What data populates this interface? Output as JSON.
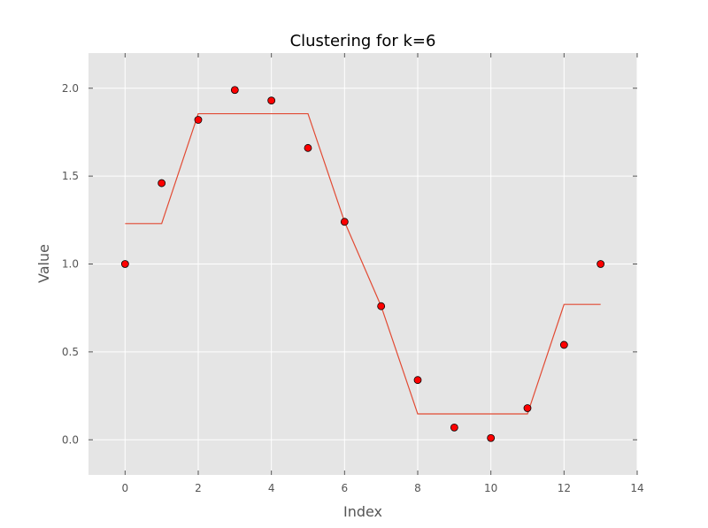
{
  "chart_data": {
    "type": "scatter",
    "title": "Clustering for k=6",
    "xlabel": "Index",
    "ylabel": "Value",
    "xlim": [
      -1,
      14
    ],
    "ylim": [
      -0.2,
      2.2
    ],
    "xticks": [
      0,
      2,
      4,
      6,
      8,
      10,
      12,
      14
    ],
    "yticks": [
      0.0,
      0.5,
      1.0,
      1.5,
      2.0
    ],
    "xtick_labels": [
      "0",
      "2",
      "4",
      "6",
      "8",
      "10",
      "12",
      "14"
    ],
    "ytick_labels": [
      "0.0",
      "0.5",
      "1.0",
      "1.5",
      "2.0"
    ],
    "grid": true,
    "series": [
      {
        "kind": "markers",
        "x": [
          0,
          1,
          2,
          3,
          4,
          5,
          6,
          7,
          8,
          9,
          10,
          11,
          12,
          13
        ],
        "y": [
          1.0,
          1.46,
          1.82,
          1.99,
          1.93,
          1.66,
          1.24,
          0.76,
          0.34,
          0.07,
          0.01,
          0.18,
          0.54,
          1.0
        ],
        "color": "#ff0000"
      },
      {
        "kind": "line",
        "x": [
          0,
          1,
          2,
          3,
          4,
          5,
          6,
          7,
          8,
          9,
          10,
          11,
          12,
          13
        ],
        "y": [
          1.23,
          1.23,
          1.855,
          1.855,
          1.855,
          1.855,
          1.24,
          0.76,
          0.147,
          0.147,
          0.147,
          0.147,
          0.77,
          0.77
        ],
        "color": "#e24a33"
      }
    ],
    "colors": {
      "plot_background": "#e5e5e5",
      "grid": "#ffffff",
      "tick_mark": "#555555",
      "marker_edge": "#000000"
    }
  }
}
